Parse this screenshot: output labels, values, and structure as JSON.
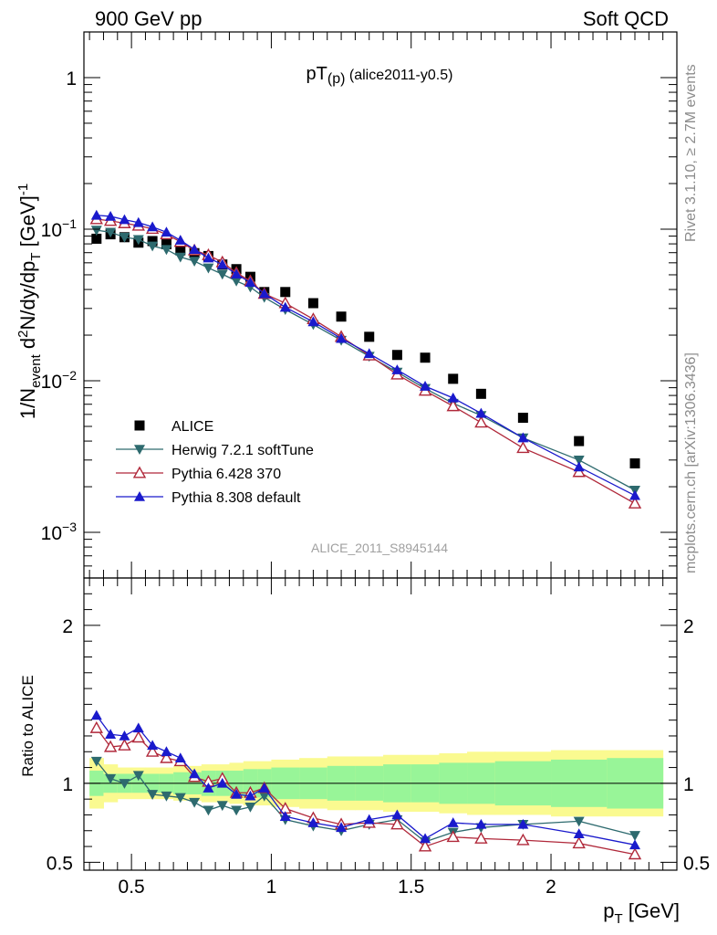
{
  "header": {
    "left": "900 GeV pp",
    "right": "Soft QCD"
  },
  "side_labels": {
    "rivet": "Rivet 3.1.10, ≥ 2.7M events",
    "mcplots": "mcplots.cern.ch [arXiv:1306.3436]"
  },
  "analysis_id": "ALICE_2011_S8945144",
  "colors": {
    "data": "#000000",
    "herwig": "#2d6a6e",
    "pythia6": "#b0283a",
    "pythia8": "#1a1acc",
    "band_inner": "#98f598",
    "band_outer": "#fafa90"
  },
  "chart_data": [
    {
      "type": "scatter",
      "panel": "main",
      "title": "pT(p) (alice2011-y0.5)",
      "title_main": "pT",
      "title_sub": "(p)",
      "title_rest": " (alice2011-y0.5)",
      "ylabel": "1/N_event d²N/dy/dp_T [GeV]⁻¹",
      "yscale": "log",
      "ylim": [
        0.0005,
        2
      ],
      "y_ticks": [
        {
          "value": 1,
          "base": "1",
          "exp": ""
        },
        {
          "value": 0.1,
          "base": "10",
          "exp": "−1"
        },
        {
          "value": 0.01,
          "base": "10",
          "exp": "−2"
        },
        {
          "value": 0.001,
          "base": "10",
          "exp": "−3"
        }
      ],
      "legend_position": "lower-left",
      "x": [
        0.375,
        0.425,
        0.475,
        0.525,
        0.575,
        0.625,
        0.675,
        0.725,
        0.775,
        0.825,
        0.875,
        0.925,
        0.975,
        1.05,
        1.15,
        1.25,
        1.35,
        1.45,
        1.55,
        1.65,
        1.75,
        1.9,
        2.1,
        2.3
      ],
      "series": [
        {
          "name": "ALICE",
          "key": "data",
          "marker": "square",
          "values": [
            0.0865,
            0.0925,
            0.0885,
            0.0815,
            0.0835,
            0.0795,
            0.0725,
            0.0695,
            0.0665,
            0.0585,
            0.0545,
            0.0485,
            0.0385,
            0.0385,
            0.0325,
            0.0265,
            0.0195,
            0.0148,
            0.0142,
            0.0103,
            0.0082,
            0.0057,
            0.004,
            0.00285
          ]
        },
        {
          "name": "Herwig 7.2.1 softTune",
          "key": "herwig",
          "marker": "triangle-down",
          "values": [
            0.0985,
            0.0955,
            0.0885,
            0.0855,
            0.0775,
            0.0735,
            0.0655,
            0.0615,
            0.0555,
            0.0505,
            0.0455,
            0.0415,
            0.0355,
            0.0295,
            0.0235,
            0.0185,
            0.0145,
            0.0114,
            0.0089,
            0.0071,
            0.0059,
            0.0042,
            0.003,
            0.0019
          ]
        },
        {
          "name": "Pythia 6.428 370",
          "key": "pythia6",
          "marker": "triangle-up-open",
          "values": [
            0.1165,
            0.1135,
            0.1095,
            0.1055,
            0.1005,
            0.0925,
            0.0825,
            0.0725,
            0.0675,
            0.0605,
            0.0515,
            0.0455,
            0.0375,
            0.0325,
            0.0255,
            0.0195,
            0.0147,
            0.011,
            0.0086,
            0.0068,
            0.0053,
            0.0036,
            0.0025,
            0.00155
          ]
        },
        {
          "name": "Pythia 8.308 default",
          "key": "pythia8",
          "marker": "triangle-up",
          "values": [
            0.1235,
            0.1215,
            0.1155,
            0.1105,
            0.1035,
            0.0955,
            0.0845,
            0.0735,
            0.0645,
            0.0585,
            0.0505,
            0.0445,
            0.0375,
            0.0305,
            0.0245,
            0.019,
            0.0151,
            0.0118,
            0.0092,
            0.0077,
            0.0061,
            0.0042,
            0.0027,
            0.00175
          ]
        }
      ]
    },
    {
      "type": "scatter",
      "panel": "ratio",
      "ylabel": "Ratio to ALICE",
      "xlabel": "p_T [GeV]",
      "xlabel_main": "p",
      "xlabel_sub": "T",
      "xlabel_rest": " [GeV]",
      "xlim": [
        0.33,
        2.45
      ],
      "ylim": [
        0.45,
        2.3
      ],
      "x_ticks": [
        {
          "value": 0.5,
          "label": "0.5"
        },
        {
          "value": 1,
          "label": "1"
        },
        {
          "value": 1.5,
          "label": "1.5"
        },
        {
          "value": 2,
          "label": "2"
        }
      ],
      "y_ticks": [
        {
          "value": 0.5,
          "label": "0.5"
        },
        {
          "value": 1,
          "label": "1"
        },
        {
          "value": 2,
          "label": "2"
        }
      ],
      "bands": {
        "edges": [
          0.35,
          0.4,
          0.45,
          0.5,
          0.55,
          0.6,
          0.65,
          0.7,
          0.75,
          0.8,
          0.85,
          0.9,
          0.95,
          1.0,
          1.1,
          1.2,
          1.3,
          1.4,
          1.5,
          1.6,
          1.7,
          1.8,
          2.0,
          2.2,
          2.4
        ],
        "inner_lo": [
          0.92,
          0.94,
          0.94,
          0.94,
          0.94,
          0.94,
          0.93,
          0.93,
          0.92,
          0.92,
          0.92,
          0.91,
          0.91,
          0.9,
          0.9,
          0.89,
          0.89,
          0.88,
          0.88,
          0.87,
          0.87,
          0.86,
          0.85,
          0.84
        ],
        "inner_hi": [
          1.08,
          1.06,
          1.06,
          1.06,
          1.06,
          1.06,
          1.07,
          1.07,
          1.08,
          1.08,
          1.08,
          1.09,
          1.09,
          1.1,
          1.1,
          1.11,
          1.11,
          1.12,
          1.12,
          1.13,
          1.13,
          1.14,
          1.15,
          1.16
        ],
        "outer_lo": [
          0.84,
          0.88,
          0.9,
          0.9,
          0.9,
          0.9,
          0.89,
          0.89,
          0.88,
          0.88,
          0.87,
          0.86,
          0.86,
          0.85,
          0.84,
          0.83,
          0.83,
          0.82,
          0.82,
          0.81,
          0.8,
          0.8,
          0.79,
          0.79
        ],
        "outer_hi": [
          1.16,
          1.12,
          1.1,
          1.1,
          1.1,
          1.1,
          1.11,
          1.11,
          1.12,
          1.12,
          1.13,
          1.14,
          1.14,
          1.15,
          1.16,
          1.17,
          1.17,
          1.18,
          1.18,
          1.19,
          1.2,
          1.2,
          1.21,
          1.21
        ]
      },
      "x": [
        0.375,
        0.425,
        0.475,
        0.525,
        0.575,
        0.625,
        0.675,
        0.725,
        0.775,
        0.825,
        0.875,
        0.925,
        0.975,
        1.05,
        1.15,
        1.25,
        1.35,
        1.45,
        1.55,
        1.65,
        1.75,
        1.9,
        2.1,
        2.3
      ],
      "series": [
        {
          "name": "Herwig 7.2.1 softTune",
          "key": "herwig",
          "marker": "triangle-down",
          "values": [
            1.14,
            1.03,
            1.0,
            1.05,
            0.93,
            0.92,
            0.91,
            0.88,
            0.83,
            0.86,
            0.83,
            0.85,
            0.92,
            0.77,
            0.73,
            0.7,
            0.74,
            0.77,
            0.63,
            0.69,
            0.72,
            0.74,
            0.76,
            0.67
          ]
        },
        {
          "name": "Pythia 6.428 370",
          "key": "pythia6",
          "marker": "triangle-up-open",
          "values": [
            1.35,
            1.23,
            1.24,
            1.29,
            1.2,
            1.16,
            1.14,
            1.04,
            1.01,
            1.03,
            0.94,
            0.94,
            0.97,
            0.84,
            0.78,
            0.74,
            0.75,
            0.74,
            0.6,
            0.66,
            0.65,
            0.64,
            0.62,
            0.55
          ]
        },
        {
          "name": "Pythia 8.308 default",
          "key": "pythia8",
          "marker": "triangle-up",
          "values": [
            1.43,
            1.31,
            1.3,
            1.35,
            1.24,
            1.2,
            1.16,
            1.06,
            0.97,
            1.0,
            0.93,
            0.92,
            0.97,
            0.79,
            0.75,
            0.72,
            0.77,
            0.8,
            0.65,
            0.75,
            0.74,
            0.74,
            0.68,
            0.61
          ]
        }
      ]
    }
  ]
}
